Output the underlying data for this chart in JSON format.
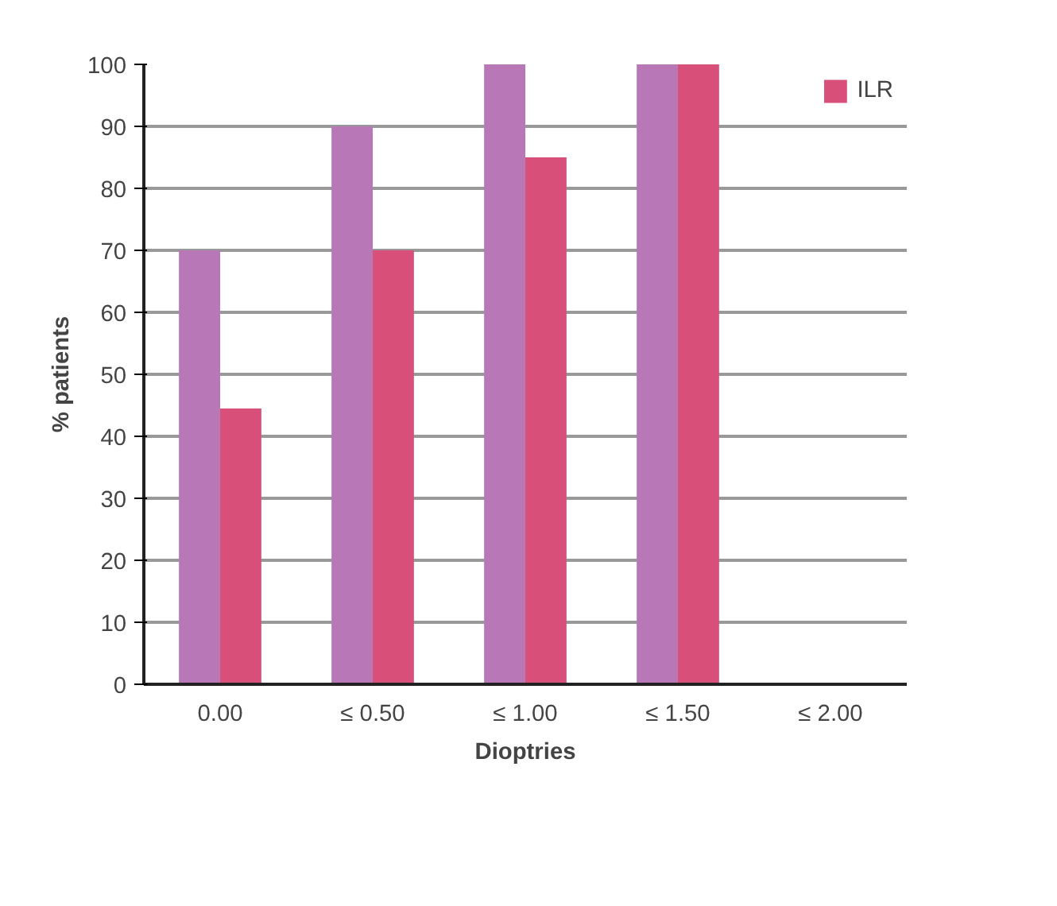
{
  "chart_data": {
    "type": "bar",
    "xlabel": "Dioptries",
    "ylabel": "% patients",
    "categories": [
      "0.00",
      "≤ 0.50",
      "≤ 1.00",
      "≤ 1.50",
      "≤ 2.00"
    ],
    "series": [
      {
        "color": "#b878b8",
        "values": [
          70,
          90,
          100,
          100,
          null
        ]
      },
      {
        "name": "ILR",
        "color": "#d8507a",
        "values": [
          44.5,
          70,
          85,
          100,
          null
        ]
      }
    ],
    "ylim": [
      0,
      100
    ],
    "yticks": [
      0,
      10,
      20,
      30,
      40,
      50,
      60,
      70,
      80,
      90,
      100
    ],
    "grid": "y",
    "legend": "top right"
  }
}
